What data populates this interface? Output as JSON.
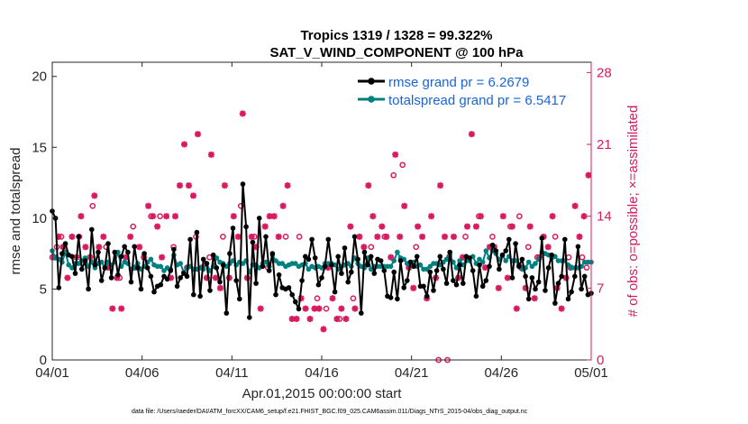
{
  "chart_data": {
    "type": "line",
    "title": "Tropics 1319 / 1328 = 99.322%",
    "subtitle": "SAT_V_WIND_COMPONENT @ 100 hPa",
    "xlabel": "Apr.01,2015 00:00:00 start",
    "ylabel": "rmse and totalspread",
    "ylabel_right": "# of obs: o=possible; ×=assimilated",
    "x_ticks": [
      "04/01",
      "04/06",
      "04/11",
      "04/16",
      "04/21",
      "04/26",
      "05/01"
    ],
    "x_range": [
      0,
      30
    ],
    "ylim": [
      0,
      21
    ],
    "y_ticks": [
      0,
      5,
      10,
      15,
      20
    ],
    "ylim_right": [
      0,
      29
    ],
    "y_ticks_right": [
      0,
      7,
      14,
      21,
      28
    ],
    "grid": false,
    "legend_position": "top-right",
    "colors": {
      "rmse": "#000000",
      "spread": "#008080",
      "obs": "#d81b60"
    },
    "series": [
      {
        "name": "rmse",
        "legend": "rmse grand pr = 6.2679",
        "color": "#000000",
        "values": [
          10.5,
          10,
          5.1,
          7.5,
          8.2,
          7.4,
          7.3,
          6.1,
          8.7,
          6.4,
          7,
          5,
          9.2,
          6.7,
          7.6,
          5.6,
          6.5,
          8.2,
          5.8,
          7.6,
          6,
          7.3,
          8,
          7.6,
          5.5,
          8,
          6.5,
          5,
          7.5,
          6.5,
          5.9,
          4.8,
          5.2,
          5.3,
          5.9,
          5.7,
          6.3,
          7.8,
          5.2,
          5.8,
          6.1,
          5.9,
          8.5,
          4.6,
          9,
          4.5,
          7.1,
          6.8,
          4.9,
          7.4,
          6.5,
          5.5,
          6.7,
          3.3,
          7.5,
          9.3,
          5.6,
          4.3,
          12.4,
          9.4,
          3,
          8.3,
          5.4,
          10,
          6.6,
          8.7,
          6.3,
          7.5,
          4.6,
          6,
          5.1,
          5,
          5.1,
          4.6,
          4.1,
          3.6,
          5.6,
          7.3,
          7.1,
          8.5,
          7.2,
          5.3,
          5.8,
          6.6,
          8.5,
          6.7,
          4.8,
          7.3,
          6.1,
          7.9,
          5.5,
          6.2,
          8.7,
          7.1,
          3.3,
          7.6,
          6.7,
          7.3,
          6.1,
          7.1,
          7,
          6.3,
          4.5,
          4.4,
          6.2,
          4.3,
          7,
          5.1,
          5.6,
          6.9,
          6.6,
          7.3,
          5.2,
          5.2,
          4.5,
          6.2,
          4.9,
          6.3,
          7.3,
          6.4,
          5.4,
          7.6,
          5.6,
          5.3,
          6.7,
          5.4,
          7.3,
          7.2,
          6.3,
          4.5,
          6.7,
          5.2,
          5.6,
          6.6,
          8.1,
          7.7,
          6.4,
          7.4,
          7.7,
          8.5,
          5.8,
          8.2,
          6.6,
          7.1,
          5.9,
          4.3,
          5.8,
          5,
          5.5,
          8.6,
          4.9,
          6.5,
          7.4,
          4,
          5.4,
          5.9,
          8.5,
          4.3,
          4.8,
          5.9,
          8,
          5,
          5.9,
          4.6,
          4.7
        ]
      },
      {
        "name": "totalspread",
        "legend": "totalspread grand pr = 6.5417",
        "color": "#008080",
        "values": [
          7.7,
          7.2,
          7.1,
          6.9,
          7.6,
          6.7,
          6.5,
          6.8,
          6.8,
          7,
          7.2,
          6.6,
          6.9,
          6.5,
          6.8,
          6.9,
          6.5,
          6.9,
          6.7,
          6.9,
          7.6,
          6.6,
          6.9,
          6.8,
          6.4,
          6.5,
          6.8,
          6.4,
          6.6,
          6.9,
          7.1,
          6.7,
          6.6,
          6.6,
          6.3,
          6.5,
          6.4,
          7.4,
          6.7,
          6.8,
          6.2,
          6.5,
          6.6,
          6.4,
          6.4,
          6.5,
          6.4,
          6.8,
          6.3,
          6.6,
          7.2,
          6.9,
          6.8,
          6.6,
          6.8,
          7,
          6.7,
          6.9,
          6.8,
          7,
          6.2,
          6.7,
          6.7,
          6.5,
          6.8,
          6.9,
          6.6,
          7.4,
          7,
          6.8,
          6.8,
          6.6,
          6.7,
          6.8,
          6.8,
          6.6,
          6.7,
          6.8,
          6.4,
          6.6,
          6.5,
          6.6,
          6.5,
          6.8,
          6.8,
          6.8,
          6.7,
          6.4,
          6.6,
          6.7,
          6.8,
          6.6,
          7.2,
          6.8,
          6.6,
          6.5,
          7.2,
          6.4,
          6.6,
          6.6,
          6.6,
          6.6,
          6.6,
          6.6,
          7,
          7.6,
          7.2,
          7.1,
          6.8,
          6.9,
          6.9,
          6.6,
          6.7,
          6.4,
          6.4,
          6.6,
          6.8,
          6.8,
          6.7,
          6.9,
          7.1,
          7.4,
          6.9,
          6.5,
          7,
          6.7,
          7,
          7,
          7.3,
          6.8,
          7.1,
          6.9,
          7.7,
          7.2,
          7.7,
          7.5,
          7.1,
          7.4,
          7,
          7.3,
          7,
          7,
          6.7,
          6.4,
          6.5,
          6.9,
          6.6,
          6.8,
          7.1,
          7.6,
          7.5,
          7.4,
          7.2,
          7.3,
          7,
          7,
          7,
          6.7,
          6.5,
          6.5,
          6.5,
          6.6,
          6.9,
          6.9,
          6.9
        ]
      },
      {
        "name": "obs_possible",
        "marker": "o",
        "axis": "right",
        "color": "#d81b60",
        "x": [
          0,
          0.25,
          0.5,
          1.5,
          2.25,
          3,
          3.75,
          4.5,
          5.5,
          6,
          6.75,
          7.5,
          8,
          8.75,
          9.5,
          10.5,
          11.25,
          12,
          13,
          13.75,
          14.75,
          15.25,
          16,
          16.75,
          17.75,
          18.5,
          19,
          19.5,
          20.25,
          21.5,
          22,
          23,
          23.75,
          24.5,
          25.5,
          26,
          26.5,
          27,
          28,
          28.75,
          29.5,
          29.75
        ],
        "y": [
          10,
          11,
          12,
          12,
          15,
          11,
          8,
          13,
          14,
          14,
          11,
          9,
          12,
          10,
          12,
          15,
          12,
          9,
          12,
          12,
          6,
          5,
          4,
          6,
          11,
          12,
          18,
          19,
          11,
          0,
          0,
          12,
          14,
          12,
          13,
          14,
          11,
          10,
          12,
          10,
          10,
          9
        ]
      },
      {
        "name": "obs_assimilated",
        "marker": "x",
        "axis": "right",
        "color": "#d81b60",
        "x": [
          0.1,
          0.35,
          0.6,
          0.85,
          1.1,
          1.35,
          1.6,
          1.85,
          2.1,
          2.35,
          2.6,
          2.85,
          3.1,
          3.35,
          3.6,
          3.85,
          4.1,
          4.35,
          4.6,
          4.85,
          5.1,
          5.35,
          5.6,
          5.85,
          6.1,
          6.35,
          6.6,
          6.85,
          7.1,
          7.35,
          7.6,
          7.85,
          8.1,
          8.35,
          8.6,
          8.85,
          9.1,
          9.35,
          9.6,
          9.85,
          10.1,
          10.35,
          10.6,
          10.85,
          11.1,
          11.35,
          11.6,
          11.85,
          12.1,
          12.35,
          12.6,
          12.85,
          13.1,
          13.35,
          13.6,
          13.85,
          14.1,
          14.35,
          14.6,
          14.85,
          15.1,
          15.35,
          15.6,
          15.85,
          16.1,
          16.35,
          16.6,
          16.85,
          17.1,
          17.35,
          17.6,
          17.85,
          18.1,
          18.35,
          18.6,
          18.85,
          19.1,
          19.35,
          19.6,
          19.85,
          20.1,
          20.35,
          20.6,
          20.85,
          21.1,
          21.35,
          21.6,
          21.85,
          22.1,
          22.35,
          22.6,
          22.85,
          23.1,
          23.35,
          23.6,
          23.85,
          24.1,
          24.35,
          24.6,
          24.85,
          25.1,
          25.35,
          25.6,
          25.85,
          26.1,
          26.35,
          26.6,
          26.85,
          27.1,
          27.35,
          27.6,
          27.85,
          28.1,
          28.35,
          28.6,
          28.85,
          29.1,
          29.35,
          29.6,
          29.85
        ],
        "y": [
          10,
          12,
          11,
          8,
          12,
          10,
          14,
          11,
          10,
          16,
          11,
          12,
          9,
          5,
          8,
          5,
          10,
          12,
          9,
          11,
          10,
          15,
          14,
          13,
          10,
          14,
          8,
          14,
          17,
          21,
          17,
          16,
          22,
          9,
          8,
          20,
          8,
          7,
          17,
          8,
          14,
          12,
          24,
          8,
          12,
          11,
          5,
          13,
          14,
          14,
          12,
          15,
          17,
          4,
          4,
          6,
          5,
          4,
          5,
          5,
          3,
          9,
          6,
          4,
          5,
          4,
          13,
          5,
          12,
          11,
          17,
          14,
          12,
          13,
          12,
          10,
          20,
          12,
          15,
          9,
          7,
          13,
          12,
          6,
          14,
          8,
          17,
          12,
          10,
          12,
          8,
          10,
          13,
          22,
          13,
          14,
          9,
          11,
          11,
          7,
          14,
          8,
          13,
          5,
          9,
          7,
          13,
          6,
          10,
          12,
          11,
          14,
          7,
          5,
          8,
          9,
          15,
          12,
          14,
          18
        ]
      }
    ],
    "footnote": "data file: /Users/raeder/DAI/ATM_forcXX/CAM6_setup/f.e21.FHIST_BGC.f09_025.CAM6assim.011/Diags_NTrS_2015-04/obs_diag_output.nc"
  }
}
